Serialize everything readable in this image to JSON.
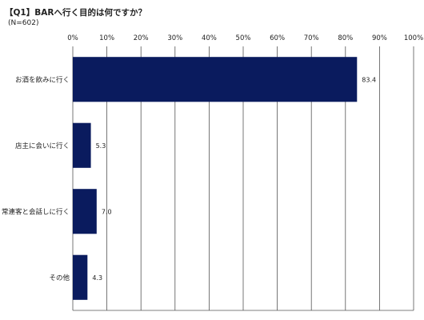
{
  "title": "【Q1】BARへ行く目的は何ですか？",
  "subtitle": "(N=602)",
  "chart_data": {
    "type": "bar",
    "orientation": "horizontal",
    "title": "【Q1】BARへ行く目的は何ですか？",
    "subtitle": "(N=602)",
    "categories": [
      "お酒を飲みに行く",
      "店主に会いに行く",
      "常連客と会話しに行く",
      "その他"
    ],
    "values": [
      83.4,
      5.3,
      7.0,
      4.3
    ],
    "value_labels": [
      "83.4",
      "5.3",
      "7.0",
      "4.3"
    ],
    "xlim": [
      0,
      100
    ],
    "x_ticks": [
      "0%",
      "10%",
      "20%",
      "30%",
      "40%",
      "50%",
      "60%",
      "70%",
      "80%",
      "90%",
      "100%"
    ],
    "x_tick_position": "top",
    "grid": true,
    "bar_color": "#0a1b5e"
  }
}
